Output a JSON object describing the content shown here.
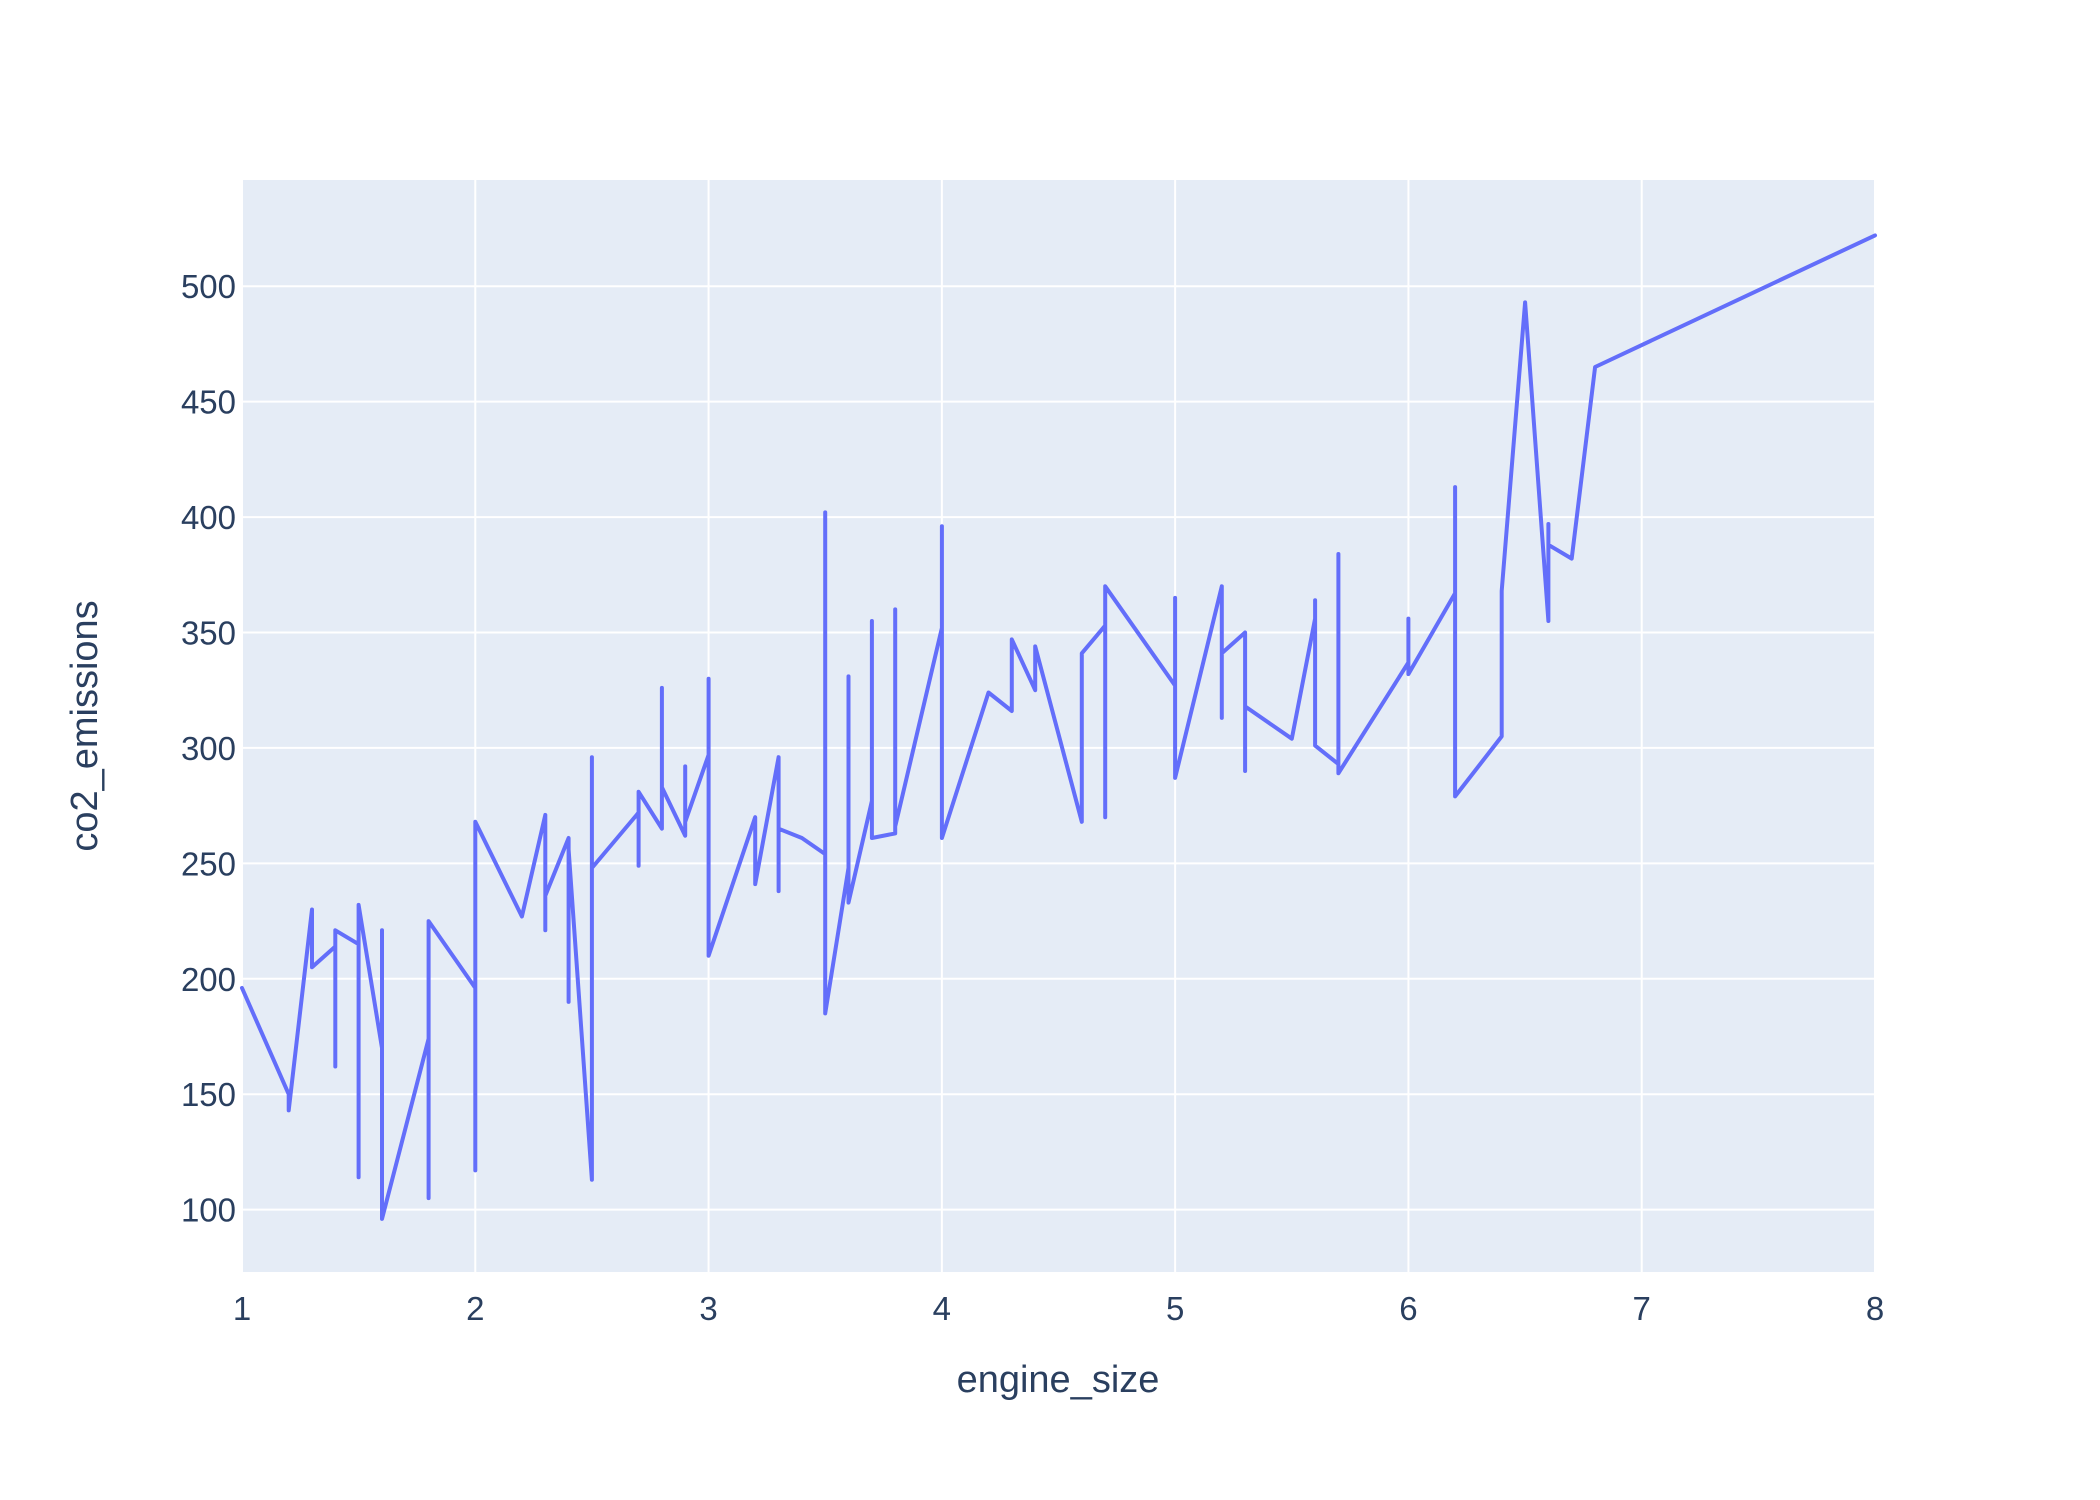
{
  "chart_data": {
    "type": "line",
    "title": "",
    "xlabel": "engine_size",
    "ylabel": "co2_emissions",
    "xlim": [
      1,
      8
    ],
    "ylim": [
      73,
      546
    ],
    "x_ticks": [
      1,
      2,
      3,
      4,
      5,
      6,
      7,
      8
    ],
    "y_ticks": [
      100,
      150,
      200,
      250,
      300,
      350,
      400,
      450,
      500
    ],
    "grid": true,
    "legend": "none",
    "colors": {
      "line": "#636efa",
      "plot_bg": "#e5ecf6",
      "grid": "#ffffff",
      "text": "#2a3f5f"
    },
    "series": [
      {
        "x": [
          1.0,
          1.2,
          1.2,
          1.3,
          1.3,
          1.4,
          1.4,
          1.4,
          1.5,
          1.5,
          1.5,
          1.6,
          1.6,
          1.6,
          1.8,
          1.8,
          1.8,
          2.0,
          2.0,
          2.0,
          2.2,
          2.3,
          2.3,
          2.3,
          2.4,
          2.4,
          2.4,
          2.5,
          2.5,
          2.5,
          2.7,
          2.7,
          2.7,
          2.8,
          2.8,
          2.8,
          2.9,
          2.9,
          2.9,
          3.0,
          3.0,
          3.0,
          3.2,
          3.2,
          3.3,
          3.3,
          3.3,
          3.4,
          3.5,
          3.5,
          3.5,
          3.6,
          3.6,
          3.6,
          3.7,
          3.7,
          3.7,
          3.8,
          3.8,
          3.8,
          4.0,
          4.0,
          4.0,
          4.2,
          4.3,
          4.3,
          4.4,
          4.4,
          4.6,
          4.6,
          4.7,
          4.7,
          4.7,
          5.0,
          5.0,
          5.0,
          5.2,
          5.2,
          5.2,
          5.3,
          5.3,
          5.3,
          5.5,
          5.6,
          5.6,
          5.6,
          5.7,
          5.7,
          5.7,
          6.0,
          6.0,
          6.0,
          6.2,
          6.2,
          6.2,
          6.4,
          6.4,
          6.4,
          6.5,
          6.6,
          6.6,
          6.6,
          6.7,
          6.8,
          8.0
        ],
        "y": [
          196,
          150,
          143,
          230,
          205,
          214,
          162,
          221,
          215,
          114,
          232,
          170,
          221,
          96,
          174,
          105,
          225,
          196,
          117,
          268,
          227,
          271,
          221,
          236,
          261,
          190,
          256,
          113,
          296,
          248,
          272,
          249,
          281,
          265,
          326,
          283,
          262,
          292,
          268,
          297,
          330,
          210,
          270,
          241,
          296,
          238,
          265,
          261,
          254,
          402,
          185,
          248,
          331,
          233,
          277,
          355,
          261,
          263,
          360,
          266,
          352,
          396,
          261,
          324,
          316,
          347,
          325,
          344,
          268,
          341,
          353,
          270,
          370,
          327,
          365,
          287,
          370,
          313,
          341,
          350,
          290,
          318,
          304,
          356,
          364,
          301,
          293,
          384,
          289,
          337,
          356,
          332,
          367,
          413,
          279,
          305,
          368,
          368,
          493,
          355,
          397,
          388,
          382,
          465,
          522
        ]
      }
    ]
  }
}
